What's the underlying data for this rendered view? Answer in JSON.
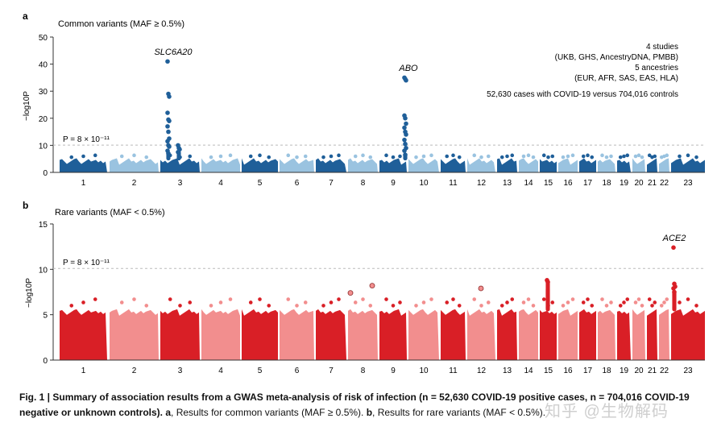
{
  "chart_data": [
    {
      "type": "scatter",
      "panel_letter": "a",
      "title": "Common variants (MAF ≥ 0.5%)",
      "ylabel": "−log10P",
      "ylim": [
        0,
        50
      ],
      "yticks": [
        0,
        10,
        20,
        30,
        40,
        50
      ],
      "threshold_label": "P = 8 × 10⁻¹¹",
      "threshold": 10.1,
      "baseline_max": 5.2,
      "colors": [
        "#1f5f99",
        "#9ac3e0"
      ],
      "chromosomes": [
        "1",
        "2",
        "3",
        "4",
        "5",
        "6",
        "7",
        "8",
        "9",
        "10",
        "11",
        "12",
        "13",
        "14",
        "15",
        "16",
        "17",
        "18",
        "19",
        "20",
        "21",
        "22",
        "23"
      ],
      "peaks": [
        {
          "chrom": "3",
          "label": "SLC6A20",
          "values": [
            41,
            29,
            28,
            22,
            19.5,
            19,
            17,
            15,
            12.5,
            11.5,
            10,
            9.5,
            8,
            7
          ]
        },
        {
          "chrom": "3b",
          "label": "",
          "values": [
            10,
            9,
            8.5,
            7.5
          ]
        },
        {
          "chrom": "9",
          "label": "ABO",
          "values": [
            35,
            34.5,
            34,
            21,
            20,
            18,
            16.5,
            15,
            14,
            12,
            10.5,
            9,
            8,
            6.5
          ]
        }
      ],
      "info_lines": [
        "4 studies",
        "(UKB, GHS, AncestryDNA, PMBB)",
        "5 ancestries",
        "(EUR, AFR, SAS, EAS, HLA)",
        "52,630 cases with COVID-19 versus 704,016 controls"
      ]
    },
    {
      "type": "scatter",
      "panel_letter": "b",
      "title": "Rare variants (MAF < 0.5%)",
      "ylabel": "−log10P",
      "ylim": [
        0,
        15
      ],
      "yticks": [
        0,
        5,
        10,
        15
      ],
      "threshold_label": "P = 8 × 10⁻¹¹",
      "threshold": 10.1,
      "baseline_max": 5.6,
      "colors": [
        "#d91f26",
        "#f28e8e"
      ],
      "chromosomes": [
        "1",
        "2",
        "3",
        "4",
        "5",
        "6",
        "7",
        "8",
        "9",
        "10",
        "11",
        "12",
        "13",
        "14",
        "15",
        "16",
        "17",
        "18",
        "19",
        "20",
        "21",
        "22",
        "23"
      ],
      "peaks": [
        {
          "chrom": "23",
          "label": "ACE2",
          "values": [
            12.4,
            8.4,
            8.1,
            7.9,
            7.5
          ]
        },
        {
          "chrom": "15",
          "label": "",
          "values": [
            8.8,
            8.6
          ]
        }
      ],
      "outlined_points": [
        {
          "chrom": "8",
          "value": 7.4
        },
        {
          "chrom": "8",
          "value": 8.2
        },
        {
          "chrom": "12",
          "value": 7.9
        }
      ]
    }
  ],
  "caption": {
    "fig_label": "Fig. 1 | ",
    "bold_text": "Summary of association results from a GWAS meta-analysis of risk of infection (n = 52,630 COVID-19 positive cases, n = 704,016 COVID-19 negative or unknown controls). ",
    "a_label": "a",
    "a_text": ", Results for common variants (MAF ≥ 0.5%). ",
    "b_label": "b",
    "b_text": ", Results for rare variants (MAF < 0.5%)."
  },
  "watermark": "知乎 @生物解码"
}
